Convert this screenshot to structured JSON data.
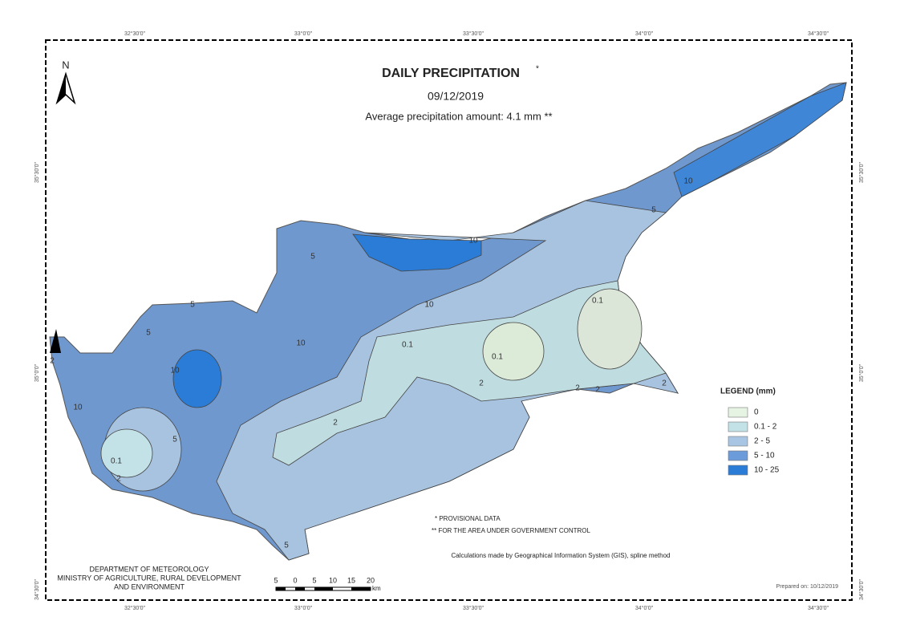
{
  "header": {
    "title": "DAILY PRECIPITATION",
    "title_mark": "*",
    "date": "09/12/2019",
    "average": "Average precipitation amount: 4.1 mm **"
  },
  "grid_labels": {
    "top": [
      "32°30'0\"",
      "33°0'0\"",
      "33°30'0\"",
      "34°0'0\"",
      "34°30'0\""
    ],
    "bottom": [
      "32°30'0\"",
      "33°0'0\"",
      "33°30'0\"",
      "34°0'0\"",
      "34°30'0\""
    ],
    "left": [
      "35°30'0\"",
      "35°0'0\"",
      "34°30'0\""
    ],
    "right": [
      "35°30'0\"",
      "35°0'0\"",
      "34°30'0\""
    ]
  },
  "north": "N",
  "legend": {
    "title": "LEGEND (mm)",
    "items": [
      {
        "label": "0",
        "color": "#e6f4e4"
      },
      {
        "label": "0.1 - 2",
        "color": "#c3e2e8"
      },
      {
        "label": "2 - 5",
        "color": "#a8c5e3"
      },
      {
        "label": "5 - 10",
        "color": "#6b9bd8"
      },
      {
        "label": "10 - 25",
        "color": "#2b7cd6"
      }
    ]
  },
  "contour_labels": [
    "10",
    "5",
    "10",
    "0.1",
    "0.1",
    "10",
    "0.1",
    "10",
    "5",
    "5",
    "2",
    "2",
    "2",
    "2",
    "10",
    "2",
    "5",
    "0.1",
    "2",
    "5",
    "10",
    "5",
    "2"
  ],
  "notes": [
    "* PROVISIONAL DATA",
    "** FOR THE AREA UNDER GOVERNMENT CONTROL"
  ],
  "method": "Calculations made by Geographical Information System (GIS), spline method",
  "department": [
    "DEPARTMENT OF METEOROLOGY",
    "MINISTRY OF AGRICULTURE, RURAL DEVELOPMENT",
    "AND ENVIRONMENT"
  ],
  "scale": {
    "labels": [
      "5",
      "0",
      "5",
      "10",
      "15",
      "20"
    ],
    "unit": "km"
  },
  "prepared": "Prepared on: 10/12/2019"
}
